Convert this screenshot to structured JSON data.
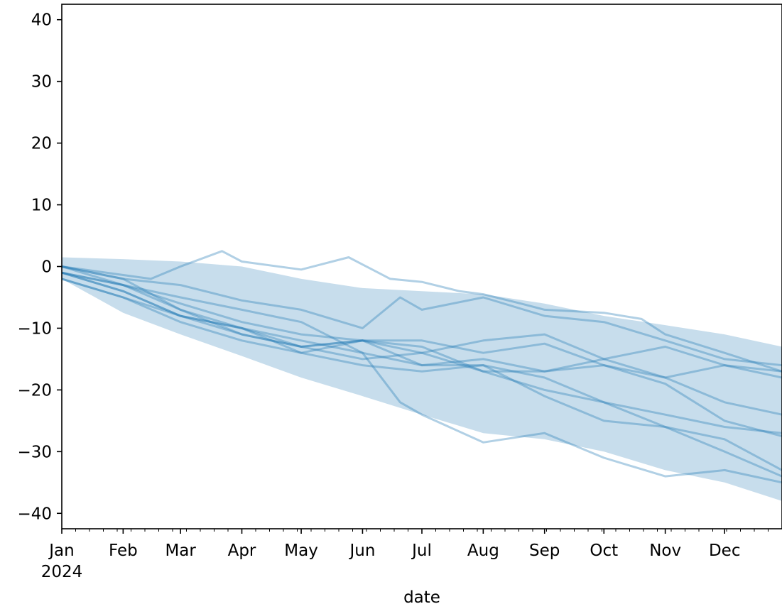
{
  "chart_data": {
    "type": "line",
    "title": "",
    "xlabel": "date",
    "ylabel": "",
    "ylim": [
      -42.5,
      42.5
    ],
    "xlim": [
      "2024-01-01",
      "2024-12-30"
    ],
    "grid": false,
    "legend": "none",
    "colors": {
      "line": "#1f77b4",
      "band": "#1f77b4",
      "axis": "#000000"
    },
    "x_tick_labels": [
      "Jan",
      "Feb",
      "Mar",
      "Apr",
      "May",
      "Jun",
      "Jul",
      "Aug",
      "Sep",
      "Oct",
      "Nov",
      "Dec"
    ],
    "x_tick_dates": [
      "2024-01-01",
      "2024-02-01",
      "2024-03-01",
      "2024-04-01",
      "2024-05-01",
      "2024-06-01",
      "2024-07-01",
      "2024-08-01",
      "2024-09-01",
      "2024-10-01",
      "2024-11-01",
      "2024-12-01"
    ],
    "x_year_label": "2024",
    "y_ticks": [
      -40,
      -30,
      -20,
      -10,
      0,
      10,
      20,
      30,
      40
    ],
    "y_tick_labels": [
      "−40",
      "−30",
      "−20",
      "−10",
      "0",
      "10",
      "20",
      "30",
      "40"
    ],
    "band": {
      "x": [
        "2024-01-01",
        "2024-02-01",
        "2024-03-01",
        "2024-04-01",
        "2024-05-01",
        "2024-06-01",
        "2024-07-01",
        "2024-08-01",
        "2024-09-01",
        "2024-10-01",
        "2024-11-01",
        "2024-12-01",
        "2024-12-30"
      ],
      "upper": [
        1.5,
        1.2,
        0.8,
        0,
        -2,
        -3.5,
        -4,
        -4.5,
        -6,
        -8,
        -9.5,
        -11,
        -13
      ],
      "lower": [
        -2,
        -7.5,
        -11,
        -14.5,
        -18,
        -21,
        -24,
        -27,
        -28,
        -30,
        -33,
        -35,
        -38
      ]
    },
    "series": [
      {
        "x": [
          "2024-01-01",
          "2024-02-15",
          "2024-03-01",
          "2024-03-22",
          "2024-04-01",
          "2024-05-01",
          "2024-05-25",
          "2024-06-15",
          "2024-07-01",
          "2024-07-20",
          "2024-08-01",
          "2024-08-20",
          "2024-09-01",
          "2024-10-01",
          "2024-10-20",
          "2024-11-01",
          "2024-12-01",
          "2024-12-30"
        ],
        "values": [
          0,
          -2,
          0,
          2.5,
          0.8,
          -0.5,
          1.5,
          -2,
          -2.5,
          -4,
          -4.5,
          -6,
          -7,
          -7.5,
          -8.5,
          -11,
          -14,
          -17
        ]
      },
      {
        "x": [
          "2024-01-01",
          "2024-02-01",
          "2024-03-01",
          "2024-04-01",
          "2024-05-01",
          "2024-06-01",
          "2024-06-20",
          "2024-07-01",
          "2024-08-01",
          "2024-09-01",
          "2024-10-01",
          "2024-11-01",
          "2024-12-01",
          "2024-12-30"
        ],
        "values": [
          0,
          -2,
          -3,
          -5.5,
          -7,
          -10,
          -5,
          -7,
          -5,
          -8,
          -9,
          -12,
          -15,
          -16
        ]
      },
      {
        "x": [
          "2024-01-01",
          "2024-02-01",
          "2024-03-01",
          "2024-04-01",
          "2024-05-01",
          "2024-06-01",
          "2024-07-01",
          "2024-08-01",
          "2024-09-01",
          "2024-10-01",
          "2024-11-01",
          "2024-12-01",
          "2024-12-30"
        ],
        "values": [
          -1,
          -3,
          -6,
          -9,
          -11,
          -12,
          -14,
          -12,
          -11,
          -15,
          -13,
          -16,
          -17
        ]
      },
      {
        "x": [
          "2024-01-01",
          "2024-02-01",
          "2024-03-01",
          "2024-04-01",
          "2024-05-01",
          "2024-06-01",
          "2024-07-01",
          "2024-08-01",
          "2024-09-01",
          "2024-10-01",
          "2024-11-01",
          "2024-12-01",
          "2024-12-30"
        ],
        "values": [
          -1,
          -4,
          -8,
          -10,
          -13,
          -12,
          -16,
          -15,
          -17,
          -16,
          -18,
          -22,
          -24
        ]
      },
      {
        "x": [
          "2024-01-01",
          "2024-02-01",
          "2024-03-01",
          "2024-04-01",
          "2024-05-01",
          "2024-06-01",
          "2024-07-01",
          "2024-08-01",
          "2024-09-01",
          "2024-10-01",
          "2024-11-01",
          "2024-12-01",
          "2024-12-30"
        ],
        "values": [
          -2,
          -5,
          -9,
          -12,
          -14,
          -16,
          -17,
          -16,
          -18,
          -22,
          -24,
          -26,
          -27
        ]
      },
      {
        "x": [
          "2024-01-01",
          "2024-02-01",
          "2024-03-01",
          "2024-04-01",
          "2024-05-01",
          "2024-06-01",
          "2024-06-20",
          "2024-07-01",
          "2024-08-01",
          "2024-09-01",
          "2024-10-01",
          "2024-11-01",
          "2024-12-01",
          "2024-12-30"
        ],
        "values": [
          -1,
          -3,
          -5,
          -7,
          -9,
          -14,
          -22,
          -24,
          -28.5,
          -27,
          -31,
          -34,
          -33,
          -35
        ]
      },
      {
        "x": [
          "2024-01-01",
          "2024-02-01",
          "2024-03-01",
          "2024-04-01",
          "2024-05-01",
          "2024-06-01",
          "2024-07-01",
          "2024-08-01",
          "2024-09-01",
          "2024-10-01",
          "2024-11-01",
          "2024-12-01",
          "2024-12-30"
        ],
        "values": [
          0,
          -2,
          -7,
          -10,
          -12,
          -14,
          -16,
          -16,
          -21,
          -25,
          -26,
          -28,
          -33
        ]
      },
      {
        "x": [
          "2024-01-01",
          "2024-02-01",
          "2024-03-01",
          "2024-04-01",
          "2024-05-01",
          "2024-06-01",
          "2024-07-01",
          "2024-08-01",
          "2024-09-01",
          "2024-10-01",
          "2024-11-01",
          "2024-12-01",
          "2024-12-30"
        ],
        "values": [
          -1,
          -4,
          -8,
          -11,
          -13,
          -15,
          -14,
          -17,
          -20,
          -22,
          -26,
          -30,
          -34
        ]
      },
      {
        "x": [
          "2024-01-01",
          "2024-02-01",
          "2024-03-01",
          "2024-04-01",
          "2024-05-01",
          "2024-06-01",
          "2024-07-01",
          "2024-08-01",
          "2024-09-01",
          "2024-10-01",
          "2024-11-01",
          "2024-12-01",
          "2024-12-30"
        ],
        "values": [
          -2,
          -5,
          -8,
          -10,
          -14,
          -12,
          -13,
          -17,
          -17,
          -15,
          -18,
          -16,
          -18
        ]
      },
      {
        "x": [
          "2024-01-01",
          "2024-02-01",
          "2024-03-01",
          "2024-04-01",
          "2024-05-01",
          "2024-06-01",
          "2024-07-01",
          "2024-08-01",
          "2024-09-01",
          "2024-10-01",
          "2024-11-01",
          "2024-12-01",
          "2024-12-30"
        ],
        "values": [
          0,
          -3,
          -7,
          -11,
          -13,
          -12,
          -12,
          -14,
          -12.5,
          -16,
          -19,
          -25,
          -27.5
        ]
      }
    ]
  }
}
